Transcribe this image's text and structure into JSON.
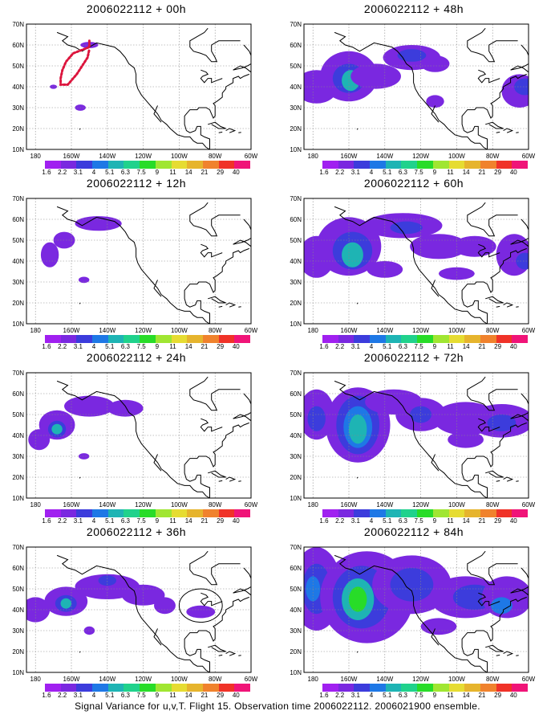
{
  "colors": {
    "palette": [
      "#a020f0",
      "#7a28e0",
      "#3c3cdc",
      "#1e78e6",
      "#1eb4b4",
      "#20d28c",
      "#28dc28",
      "#a0e632",
      "#e6dc32",
      "#e6b42d",
      "#f0822d",
      "#f03228",
      "#f01478"
    ],
    "landline": "#000000",
    "grid": "#888888",
    "obs_marker": "#dc143c"
  },
  "colorbar_labels": [
    "1.6",
    "2.2",
    "3.1",
    "4",
    "5.1",
    "6.3",
    "7.5",
    "9",
    "11",
    "14",
    "21",
    "29",
    "40"
  ],
  "axes": {
    "lon_labels": [
      "180",
      "160W",
      "140W",
      "120W",
      "100W",
      "80W",
      "60W"
    ],
    "lat_labels": [
      "10N",
      "20N",
      "30N",
      "40N",
      "50N",
      "60N",
      "70N"
    ],
    "lon_range": [
      -185,
      -60
    ],
    "lat_range": [
      10,
      70
    ]
  },
  "panels": [
    {
      "title": "2006022112 + 00h",
      "lead_hours": 0,
      "observation_track": true,
      "blobs": [
        {
          "lon": -170,
          "lat": 40,
          "rx": 2,
          "ry": 1,
          "level": 1
        },
        {
          "lon": -155,
          "lat": 30,
          "rx": 3,
          "ry": 1.5,
          "level": 1
        },
        {
          "lon": -150,
          "lat": 60,
          "rx": 5,
          "ry": 1.5,
          "level": 1
        }
      ]
    },
    {
      "title": "2006022112 + 48h",
      "lead_hours": 48,
      "blobs": [
        {
          "lon": -178,
          "lat": 40,
          "rx": 12,
          "ry": 8,
          "level": 1
        },
        {
          "lon": -160,
          "lat": 45,
          "rx": 16,
          "ry": 12,
          "level": 1
        },
        {
          "lon": -160,
          "lat": 44,
          "rx": 9,
          "ry": 7,
          "level": 2
        },
        {
          "lon": -159,
          "lat": 43,
          "rx": 5,
          "ry": 5,
          "level": 4
        },
        {
          "lon": -145,
          "lat": 45,
          "rx": 14,
          "ry": 6,
          "level": 1
        },
        {
          "lon": -125,
          "lat": 54,
          "rx": 16,
          "ry": 6,
          "level": 1
        },
        {
          "lon": -125,
          "lat": 55,
          "rx": 8,
          "ry": 3,
          "level": 2
        },
        {
          "lon": -112,
          "lat": 51,
          "rx": 8,
          "ry": 4,
          "level": 1
        },
        {
          "lon": -112,
          "lat": 33,
          "rx": 5,
          "ry": 3,
          "level": 1
        },
        {
          "lon": -65,
          "lat": 38,
          "rx": 10,
          "ry": 8,
          "level": 1
        },
        {
          "lon": -62,
          "lat": 40,
          "rx": 6,
          "ry": 4,
          "level": 2
        }
      ]
    },
    {
      "title": "2006022112 + 12h",
      "lead_hours": 12,
      "blobs": [
        {
          "lon": -172,
          "lat": 43,
          "rx": 5,
          "ry": 6,
          "level": 1
        },
        {
          "lon": -164,
          "lat": 50,
          "rx": 6,
          "ry": 4,
          "level": 1
        },
        {
          "lon": -145,
          "lat": 58,
          "rx": 13,
          "ry": 3.5,
          "level": 1
        },
        {
          "lon": -153,
          "lat": 31,
          "rx": 3,
          "ry": 1.5,
          "level": 1
        }
      ]
    },
    {
      "title": "2006022112 + 60h",
      "lead_hours": 60,
      "blobs": [
        {
          "lon": -178,
          "lat": 42,
          "rx": 10,
          "ry": 10,
          "level": 1
        },
        {
          "lon": -160,
          "lat": 47,
          "rx": 18,
          "ry": 14,
          "level": 1
        },
        {
          "lon": -158,
          "lat": 45,
          "rx": 11,
          "ry": 9,
          "level": 2
        },
        {
          "lon": -158,
          "lat": 43,
          "rx": 6,
          "ry": 6,
          "level": 4
        },
        {
          "lon": -140,
          "lat": 36,
          "rx": 10,
          "ry": 4,
          "level": 1
        },
        {
          "lon": -130,
          "lat": 57,
          "rx": 22,
          "ry": 6,
          "level": 1
        },
        {
          "lon": -128,
          "lat": 56,
          "rx": 9,
          "ry": 3,
          "level": 2
        },
        {
          "lon": -110,
          "lat": 47,
          "rx": 16,
          "ry": 6,
          "level": 1
        },
        {
          "lon": -90,
          "lat": 47,
          "rx": 12,
          "ry": 5,
          "level": 1
        },
        {
          "lon": -100,
          "lat": 34,
          "rx": 10,
          "ry": 3,
          "level": 1
        },
        {
          "lon": -68,
          "lat": 43,
          "rx": 10,
          "ry": 10,
          "level": 1
        },
        {
          "lon": -62,
          "lat": 40,
          "rx": 5,
          "ry": 4,
          "level": 2
        }
      ]
    },
    {
      "title": "2006022112 + 24h",
      "lead_hours": 24,
      "blobs": [
        {
          "lon": -178,
          "lat": 38,
          "rx": 6,
          "ry": 5,
          "level": 1
        },
        {
          "lon": -168,
          "lat": 45,
          "rx": 10,
          "ry": 7,
          "level": 1
        },
        {
          "lon": -168,
          "lat": 43,
          "rx": 5,
          "ry": 4,
          "level": 2
        },
        {
          "lon": -168,
          "lat": 43,
          "rx": 3,
          "ry": 2.5,
          "level": 4
        },
        {
          "lon": -150,
          "lat": 54,
          "rx": 14,
          "ry": 5,
          "level": 1
        },
        {
          "lon": -130,
          "lat": 53,
          "rx": 10,
          "ry": 4,
          "level": 1
        },
        {
          "lon": -153,
          "lat": 30,
          "rx": 3,
          "ry": 1.5,
          "level": 1
        }
      ]
    },
    {
      "title": "2006022112 + 72h",
      "lead_hours": 72,
      "blobs": [
        {
          "lon": -178,
          "lat": 50,
          "rx": 10,
          "ry": 12,
          "level": 1
        },
        {
          "lon": -178,
          "lat": 48,
          "rx": 5,
          "ry": 6,
          "level": 2
        },
        {
          "lon": -155,
          "lat": 45,
          "rx": 18,
          "ry": 18,
          "level": 1
        },
        {
          "lon": -155,
          "lat": 45,
          "rx": 12,
          "ry": 14,
          "level": 2
        },
        {
          "lon": -155,
          "lat": 44,
          "rx": 8,
          "ry": 10,
          "level": 3
        },
        {
          "lon": -155,
          "lat": 43,
          "rx": 5,
          "ry": 7,
          "level": 4
        },
        {
          "lon": -135,
          "lat": 56,
          "rx": 16,
          "ry": 6,
          "level": 1
        },
        {
          "lon": -120,
          "lat": 50,
          "rx": 14,
          "ry": 8,
          "level": 1
        },
        {
          "lon": -120,
          "lat": 50,
          "rx": 6,
          "ry": 4,
          "level": 2
        },
        {
          "lon": -95,
          "lat": 48,
          "rx": 18,
          "ry": 8,
          "level": 1
        },
        {
          "lon": -75,
          "lat": 47,
          "rx": 18,
          "ry": 8,
          "level": 1
        },
        {
          "lon": -75,
          "lat": 46,
          "rx": 8,
          "ry": 4,
          "level": 2
        },
        {
          "lon": -95,
          "lat": 38,
          "rx": 10,
          "ry": 4,
          "level": 1
        }
      ]
    },
    {
      "title": "2006022112 + 36h",
      "lead_hours": 36,
      "circled_region": {
        "lon": -88,
        "lat": 42,
        "rx": 12,
        "ry": 8
      },
      "blobs": [
        {
          "lon": -180,
          "lat": 40,
          "rx": 8,
          "ry": 6,
          "level": 1
        },
        {
          "lon": -163,
          "lat": 44,
          "rx": 12,
          "ry": 7,
          "level": 1
        },
        {
          "lon": -163,
          "lat": 43,
          "rx": 6,
          "ry": 4,
          "level": 2
        },
        {
          "lon": -163,
          "lat": 43,
          "rx": 3,
          "ry": 2.5,
          "level": 4
        },
        {
          "lon": -140,
          "lat": 51,
          "rx": 18,
          "ry": 6,
          "level": 1
        },
        {
          "lon": -140,
          "lat": 54,
          "rx": 5,
          "ry": 2.5,
          "level": 2
        },
        {
          "lon": -120,
          "lat": 47,
          "rx": 12,
          "ry": 5,
          "level": 1
        },
        {
          "lon": -108,
          "lat": 42,
          "rx": 6,
          "ry": 4,
          "level": 1
        },
        {
          "lon": -88,
          "lat": 39,
          "rx": 8,
          "ry": 3,
          "level": 1
        },
        {
          "lon": -150,
          "lat": 30,
          "rx": 3,
          "ry": 2,
          "level": 1
        }
      ]
    },
    {
      "title": "2006022112 + 84h",
      "lead_hours": 84,
      "blobs": [
        {
          "lon": -178,
          "lat": 50,
          "rx": 14,
          "ry": 20,
          "level": 1
        },
        {
          "lon": -178,
          "lat": 50,
          "rx": 8,
          "ry": 12,
          "level": 2
        },
        {
          "lon": -180,
          "lat": 50,
          "rx": 4,
          "ry": 6,
          "level": 3
        },
        {
          "lon": -150,
          "lat": 46,
          "rx": 26,
          "ry": 22,
          "level": 1
        },
        {
          "lon": -153,
          "lat": 46,
          "rx": 16,
          "ry": 15,
          "level": 2
        },
        {
          "lon": -155,
          "lat": 45,
          "rx": 9,
          "ry": 10,
          "level": 4
        },
        {
          "lon": -155,
          "lat": 45,
          "rx": 5,
          "ry": 6,
          "level": 6
        },
        {
          "lon": -125,
          "lat": 52,
          "rx": 22,
          "ry": 14,
          "level": 1
        },
        {
          "lon": -125,
          "lat": 52,
          "rx": 12,
          "ry": 8,
          "level": 2
        },
        {
          "lon": -95,
          "lat": 46,
          "rx": 20,
          "ry": 10,
          "level": 1
        },
        {
          "lon": -90,
          "lat": 46,
          "rx": 12,
          "ry": 6,
          "level": 2
        },
        {
          "lon": -72,
          "lat": 46,
          "rx": 14,
          "ry": 10,
          "level": 1
        },
        {
          "lon": -75,
          "lat": 42,
          "rx": 6,
          "ry": 4,
          "level": 3
        },
        {
          "lon": -110,
          "lat": 32,
          "rx": 10,
          "ry": 4,
          "level": 1
        }
      ]
    }
  ],
  "caption": "Signal Variance for u,v,T. Flight 15. Observation time 2006022112. 2006021900 ensemble."
}
